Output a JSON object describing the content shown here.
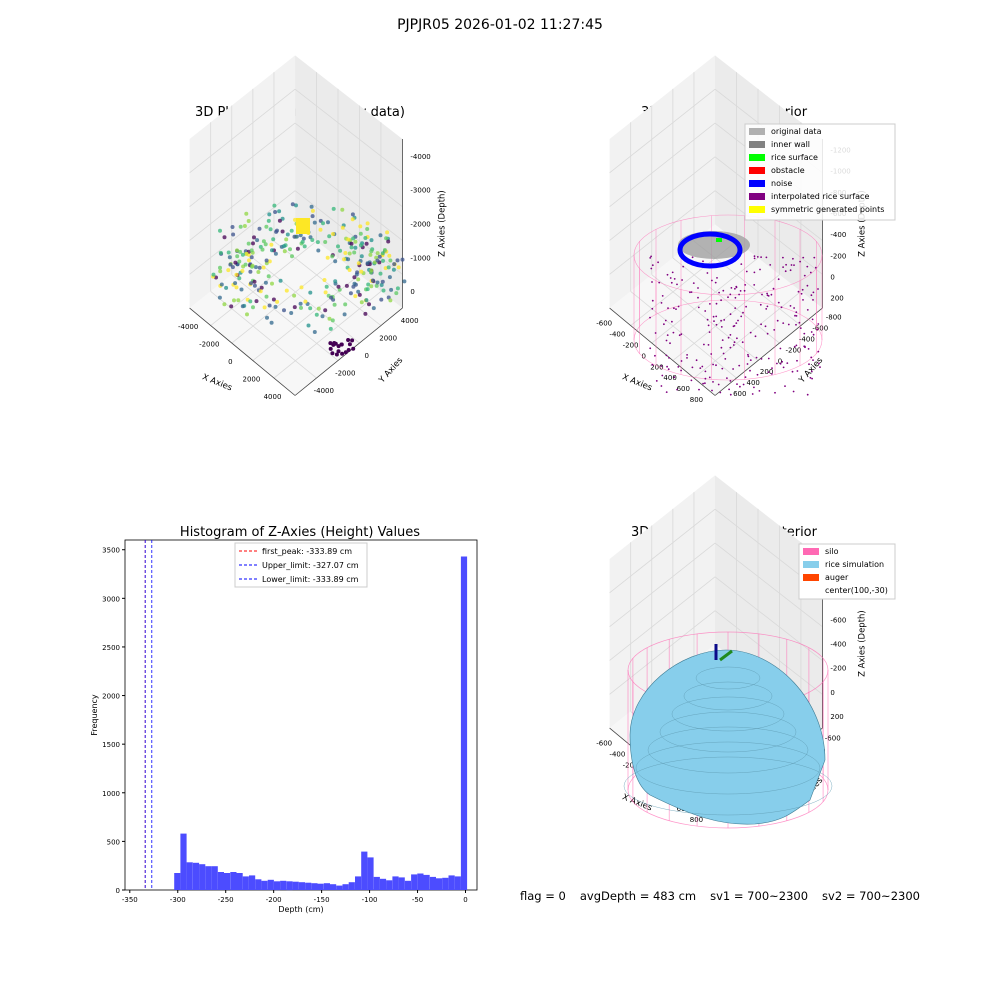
{
  "figure": {
    "suptitle": "PJPJR05 2026-01-02 11:27:45",
    "footer": {
      "flag": "flag = 0",
      "avg_depth": "avgDepth = 483 cm",
      "sv1": "sv1 = 700~2300",
      "sv2": "sv2 = 700~2300"
    }
  },
  "chart_data": [
    {
      "type": "scatter",
      "title": "3D Plot of Silo Interior(row data)",
      "xlabel": "X Axies",
      "ylabel": "Y Axies",
      "zlabel": "Z Axies (Depth)",
      "xticks": [
        "-4000",
        "-2000",
        "0",
        "2000",
        "4000"
      ],
      "yticks": [
        "-4000",
        "-2000",
        "0",
        "2000",
        "4000"
      ],
      "zticks": [
        "0",
        "-1000",
        "-2000",
        "-3000",
        "-4000"
      ],
      "xlim": [
        -4500,
        4500
      ],
      "ylim": [
        -4500,
        4500
      ],
      "zlim": [
        -4500,
        300
      ],
      "colormap": "viridis",
      "grid": true
    },
    {
      "type": "scatter",
      "title": "3D classify of Silo Interior",
      "xlabel": "X Axies",
      "ylabel": "Y Axies",
      "zlabel": "Z Axies (Depth)",
      "xticks": [
        "-600",
        "-400",
        "-200",
        "0",
        "200",
        "400",
        "600",
        "800"
      ],
      "yticks": [
        "600",
        "400",
        "200",
        "0",
        "-200",
        "-400",
        "-600",
        "-800"
      ],
      "zticks": [
        "200",
        "0",
        "-200",
        "-400",
        "-600",
        "-800",
        "-1000",
        "-1200"
      ],
      "legend_position": "top-right",
      "legend": [
        {
          "label": "original data",
          "color": "#b0b0b0"
        },
        {
          "label": "inner wall",
          "color": "#808080"
        },
        {
          "label": "rice surface",
          "color": "#00ff00"
        },
        {
          "label": "obstacle",
          "color": "#ff0000"
        },
        {
          "label": "noise",
          "color": "#0000ff"
        },
        {
          "label": "interpolated rice surface",
          "color": "#800080"
        },
        {
          "label": "symmetric generated points",
          "color": "#ffff00"
        }
      ],
      "silo_color": "#ff69b4",
      "grid": true
    },
    {
      "type": "bar",
      "title": "Histogram of Z-Axies (Height) Values",
      "xlabel": "Depth (cm)",
      "ylabel": "Frequency",
      "xlim": [
        -355,
        12
      ],
      "ylim": [
        0,
        3600
      ],
      "xticks": [
        -350,
        -300,
        -250,
        -200,
        -150,
        -100,
        -50,
        0
      ],
      "yticks": [
        0,
        500,
        1000,
        1500,
        2000,
        2500,
        3000,
        3500
      ],
      "bar_color": "#4c4cff",
      "bin_width": 6.5,
      "bins": [
        {
          "x": -300.5,
          "value": 175
        },
        {
          "x": -294,
          "value": 580
        },
        {
          "x": -287.5,
          "value": 285
        },
        {
          "x": -281,
          "value": 280
        },
        {
          "x": -274.5,
          "value": 265
        },
        {
          "x": -268,
          "value": 245
        },
        {
          "x": -261.5,
          "value": 245
        },
        {
          "x": -255,
          "value": 185
        },
        {
          "x": -248.5,
          "value": 175
        },
        {
          "x": -242,
          "value": 185
        },
        {
          "x": -235.5,
          "value": 175
        },
        {
          "x": -229,
          "value": 140
        },
        {
          "x": -222.5,
          "value": 150
        },
        {
          "x": -216,
          "value": 110
        },
        {
          "x": -209.5,
          "value": 95
        },
        {
          "x": -203,
          "value": 105
        },
        {
          "x": -196.5,
          "value": 90
        },
        {
          "x": -190,
          "value": 95
        },
        {
          "x": -183.5,
          "value": 90
        },
        {
          "x": -177,
          "value": 85
        },
        {
          "x": -170.5,
          "value": 80
        },
        {
          "x": -164,
          "value": 75
        },
        {
          "x": -157.5,
          "value": 70
        },
        {
          "x": -151,
          "value": 65
        },
        {
          "x": -144.5,
          "value": 70
        },
        {
          "x": -138,
          "value": 60
        },
        {
          "x": -131.5,
          "value": 45
        },
        {
          "x": -125,
          "value": 60
        },
        {
          "x": -118.5,
          "value": 80
        },
        {
          "x": -112,
          "value": 140
        },
        {
          "x": -105.5,
          "value": 395
        },
        {
          "x": -99,
          "value": 335
        },
        {
          "x": -92.5,
          "value": 135
        },
        {
          "x": -86,
          "value": 115
        },
        {
          "x": -79.5,
          "value": 100
        },
        {
          "x": -73,
          "value": 140
        },
        {
          "x": -66.5,
          "value": 130
        },
        {
          "x": -60,
          "value": 95
        },
        {
          "x": -53.5,
          "value": 160
        },
        {
          "x": -47,
          "value": 170
        },
        {
          "x": -40.5,
          "value": 155
        },
        {
          "x": -34,
          "value": 135
        },
        {
          "x": -27.5,
          "value": 120
        },
        {
          "x": -21,
          "value": 125
        },
        {
          "x": -14.5,
          "value": 150
        },
        {
          "x": -8,
          "value": 140
        },
        {
          "x": -1.5,
          "value": 3430
        }
      ],
      "vlines": [
        {
          "label": "first_peak: -333.89 cm",
          "x": -333.89,
          "color": "#ff0000"
        },
        {
          "label": "Upper_limit: -327.07 cm",
          "x": -327.07,
          "color": "#0000ff"
        },
        {
          "label": "Lower_limit: -333.89 cm",
          "x": -333.89,
          "color": "#0000ff"
        }
      ],
      "legend_position": "top-center"
    },
    {
      "type": "area",
      "title": "3D simulation of Silo Interior",
      "xlabel": "X Axies",
      "ylabel": "Y Axies",
      "zlabel": "Z Axies (Depth)",
      "xticks": [
        "-600",
        "-400",
        "-200",
        "0",
        "200",
        "400",
        "600",
        "800"
      ],
      "yticks": [
        "600",
        "400",
        "200",
        "0",
        "-200",
        "-400",
        "-600"
      ],
      "zticks": [
        "200",
        "0",
        "-200",
        "-400",
        "-600",
        "-800",
        "-1000"
      ],
      "legend_position": "top-right",
      "legend": [
        {
          "label": "silo",
          "color": "#ff69b4"
        },
        {
          "label": "rice simulation",
          "color": "#87ceeb"
        },
        {
          "label": "auger",
          "color": "#ff4500"
        },
        {
          "label": "center(100,-30)",
          "color": ""
        }
      ],
      "grid": true
    }
  ]
}
